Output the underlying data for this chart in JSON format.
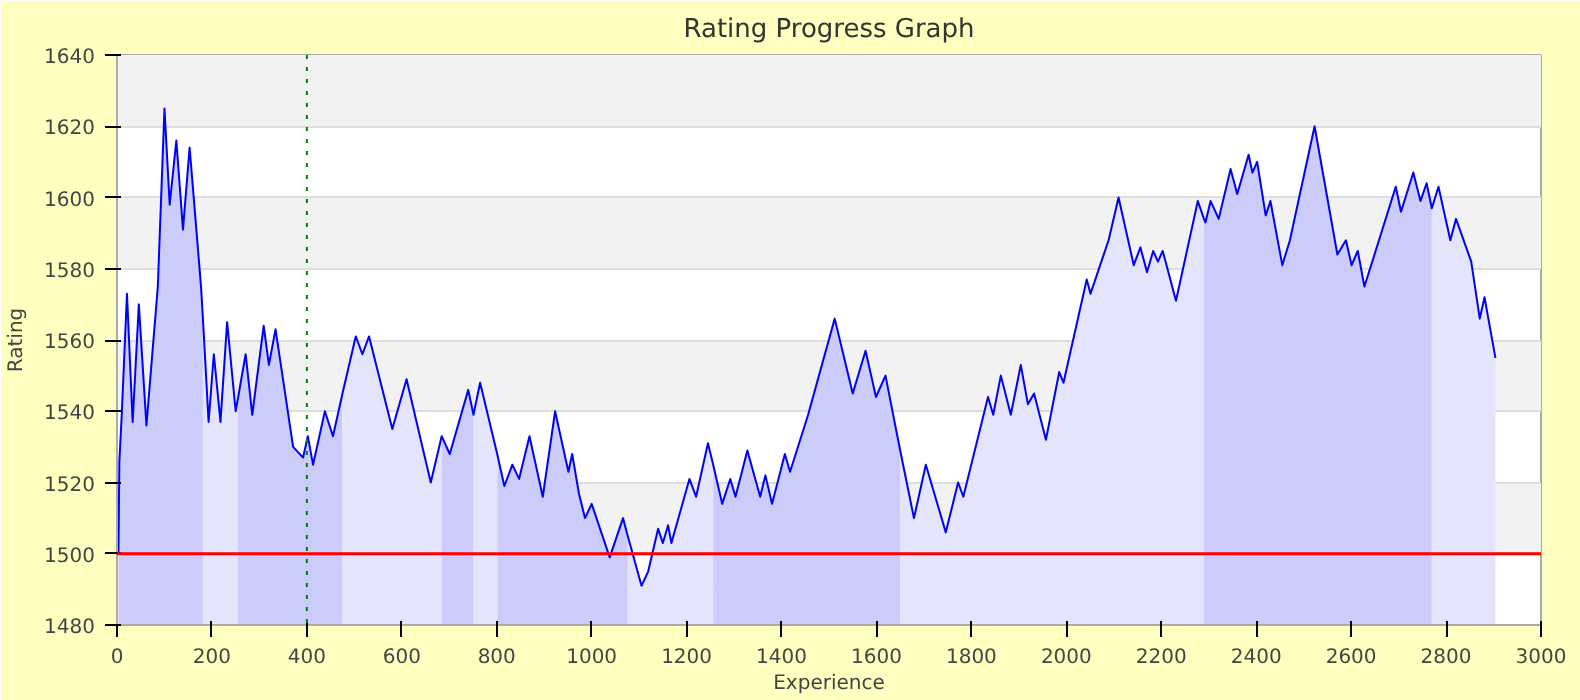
{
  "chart_data": {
    "type": "area",
    "title": "Rating Progress Graph",
    "xlabel": "Experience",
    "ylabel": "Rating",
    "x": [
      3,
      5,
      10,
      21,
      33,
      46,
      62,
      86,
      100,
      111,
      125,
      139,
      153,
      177,
      181,
      193,
      204,
      218,
      232,
      250,
      254,
      271,
      285,
      309,
      320,
      334,
      371,
      392,
      402,
      413,
      438,
      455,
      475,
      503,
      517,
      531,
      580,
      610,
      661,
      684,
      701,
      740,
      751,
      765,
      801,
      816,
      833,
      847,
      869,
      897,
      923,
      951,
      959,
      973,
      986,
      1000,
      1038,
      1066,
      1076,
      1105,
      1119,
      1140,
      1150,
      1161,
      1168,
      1206,
      1220,
      1245,
      1256,
      1275,
      1292,
      1303,
      1328,
      1355,
      1366,
      1380,
      1407,
      1418,
      1456,
      1512,
      1550,
      1577,
      1599,
      1619,
      1650,
      1679,
      1704,
      1746,
      1772,
      1783,
      1835,
      1846,
      1862,
      1883,
      1904,
      1919,
      1932,
      1957,
      1985,
      1994,
      2043,
      2051,
      2089,
      2110,
      2142,
      2156,
      2170,
      2183,
      2193,
      2203,
      2231,
      2277,
      2290,
      2293,
      2304,
      2321,
      2346,
      2360,
      2384,
      2392,
      2402,
      2420,
      2430,
      2455,
      2471,
      2523,
      2571,
      2589,
      2601,
      2614,
      2628,
      2694,
      2705,
      2731,
      2746,
      2759,
      2770,
      2784,
      2809,
      2821,
      2853,
      2871,
      2881,
      2904
    ],
    "series": [
      {
        "color": "#ccccfa",
        "values": [
          1500,
          1526,
          1539,
          1573,
          1537,
          1570,
          1536,
          1575,
          1625,
          1598,
          1616,
          1591,
          1614,
          1575,
          1566,
          null,
          null,
          null,
          null,
          null,
          1543,
          1556,
          1539,
          1564,
          1553,
          1563,
          1530,
          1527,
          1533,
          1525,
          1540,
          1533,
          1545,
          null,
          null,
          null,
          null,
          null,
          null,
          1533,
          1528,
          1546,
          1539,
          null,
          1528,
          1519,
          1525,
          1521,
          1533,
          1516,
          1540,
          1523,
          1528,
          1517,
          1510,
          1514,
          1499,
          1510,
          1505,
          null,
          null,
          null,
          null,
          null,
          null,
          null,
          null,
          null,
          1525,
          1514,
          1521,
          1516,
          1529,
          1516,
          1522,
          1514,
          1528,
          1523,
          1539,
          1566,
          1545,
          1557,
          1544,
          1550,
          1529,
          null,
          null,
          null,
          null,
          null,
          null,
          null,
          null,
          null,
          null,
          null,
          null,
          null,
          null,
          null,
          null,
          null,
          null,
          null,
          null,
          null,
          null,
          null,
          null,
          null,
          null,
          null,
          1594,
          1593,
          1599,
          1594,
          1608,
          1601,
          1612,
          1607,
          1610,
          1595,
          1599,
          1581,
          1588,
          1620,
          1584,
          1588,
          1581,
          1585,
          1575,
          1603,
          1596,
          1607,
          1599,
          1604,
          1597,
          null,
          null,
          null,
          null,
          null,
          null,
          null
        ]
      },
      {
        "color": "#e4e4fc",
        "values": [
          null,
          null,
          null,
          null,
          null,
          null,
          null,
          null,
          null,
          null,
          null,
          null,
          null,
          null,
          1566,
          1537,
          1556,
          1537,
          1565,
          1540,
          1543,
          null,
          null,
          null,
          null,
          null,
          null,
          null,
          null,
          null,
          null,
          null,
          1545,
          1561,
          1556,
          1561,
          1535,
          1549,
          1520,
          1533,
          null,
          null,
          1539,
          1548,
          1528,
          null,
          null,
          null,
          null,
          null,
          null,
          null,
          null,
          null,
          null,
          null,
          null,
          null,
          1505,
          1491,
          1495,
          1507,
          1503,
          1508,
          1503,
          1521,
          1516,
          1531,
          1525,
          null,
          null,
          null,
          null,
          null,
          null,
          null,
          null,
          null,
          null,
          null,
          null,
          null,
          null,
          null,
          1529,
          1510,
          1525,
          1506,
          1520,
          1516,
          1544,
          1539,
          1550,
          1539,
          1553,
          1542,
          1545,
          1532,
          1551,
          1548,
          1577,
          1573,
          1588,
          1600,
          1581,
          1586,
          1579,
          1585,
          1582,
          1585,
          1571,
          1599,
          1594,
          null,
          null,
          null,
          null,
          null,
          null,
          null,
          null,
          null,
          null,
          null,
          null,
          null,
          null,
          null,
          null,
          null,
          null,
          null,
          null,
          null,
          null,
          null,
          1597,
          1603,
          1588,
          1594,
          1582,
          1566,
          1572,
          1555
        ]
      },
      {
        "type": "line",
        "color": "#0000ff",
        "values": [
          1500,
          1526,
          1539,
          1573,
          1537,
          1570,
          1536,
          1575,
          1625,
          1598,
          1616,
          1591,
          1614,
          1575,
          1566,
          1537,
          1556,
          1537,
          1565,
          1540,
          1543,
          1556,
          1539,
          1564,
          1553,
          1563,
          1530,
          1527,
          1533,
          1525,
          1540,
          1533,
          1545,
          1561,
          1556,
          1561,
          1535,
          1549,
          1520,
          1533,
          1528,
          1546,
          1539,
          1548,
          1528,
          1519,
          1525,
          1521,
          1533,
          1516,
          1540,
          1523,
          1528,
          1517,
          1510,
          1514,
          1499,
          1510,
          1505,
          1491,
          1495,
          1507,
          1503,
          1508,
          1503,
          1521,
          1516,
          1531,
          1525,
          1514,
          1521,
          1516,
          1529,
          1516,
          1522,
          1514,
          1528,
          1523,
          1539,
          1566,
          1545,
          1557,
          1544,
          1550,
          1529,
          1510,
          1525,
          1506,
          1520,
          1516,
          1544,
          1539,
          1550,
          1539,
          1553,
          1542,
          1545,
          1532,
          1551,
          1548,
          1577,
          1573,
          1588,
          1600,
          1581,
          1586,
          1579,
          1585,
          1582,
          1585,
          1571,
          1599,
          1594,
          1593,
          1599,
          1594,
          1608,
          1601,
          1612,
          1607,
          1610,
          1595,
          1599,
          1581,
          1588,
          1620,
          1584,
          1588,
          1581,
          1585,
          1575,
          1603,
          1596,
          1607,
          1599,
          1604,
          1597,
          1603,
          1588,
          1594,
          1582,
          1566,
          1572,
          1555
        ]
      }
    ],
    "ref_lines": [
      {
        "axis": "y",
        "value": 1500,
        "color": "#ff0000",
        "line_style": "solid"
      },
      {
        "axis": "x",
        "value": 400,
        "color": "#008000",
        "line_style": "dotted"
      }
    ],
    "xlim": [
      0,
      3000
    ],
    "ylim": [
      1480,
      1640
    ],
    "xticks": [
      0,
      200,
      400,
      600,
      800,
      1000,
      1200,
      1400,
      1600,
      1800,
      2000,
      2200,
      2400,
      2600,
      2800,
      3000
    ],
    "yticks": [
      1480,
      1500,
      1520,
      1540,
      1560,
      1580,
      1600,
      1620,
      1640
    ],
    "grid": "y"
  }
}
